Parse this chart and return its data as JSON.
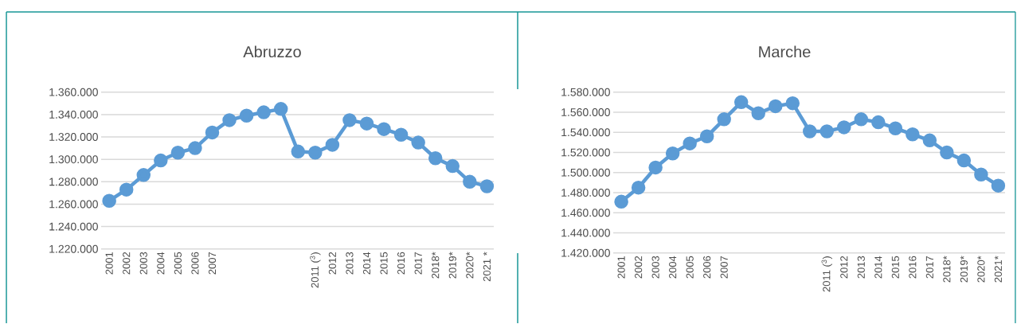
{
  "chart_data": [
    {
      "type": "line",
      "title": "Abruzzo",
      "categories": [
        "2001",
        "2002",
        "2003",
        "2004",
        "2005",
        "2006",
        "2007",
        null,
        null,
        null,
        null,
        null,
        "2011 ($^{3}$)",
        "2012",
        "2013",
        "2014",
        "2015",
        "2016",
        "2017",
        "2018*",
        "2019*",
        "2020*",
        "2021 *"
      ],
      "series": [
        {
          "color": "#5b9bd5",
          "values": [
            1263000,
            1273000,
            1286000,
            1299000,
            1306000,
            1310000,
            1324000,
            1335000,
            1339000,
            1342000,
            1345000,
            1307000,
            1306000,
            1313000,
            1335000,
            1332000,
            1327000,
            1322000,
            1315000,
            1301000,
            1294000,
            1280000,
            1276000
          ]
        }
      ],
      "ylim": [
        1220000,
        1360000
      ],
      "yticks": [
        {
          "value": 1220000,
          "label": "1.220.000"
        },
        {
          "value": 1240000,
          "label": "1.240.000"
        },
        {
          "value": 1260000,
          "label": "1.260.000"
        },
        {
          "value": 1280000,
          "label": "1.280.000"
        },
        {
          "value": 1300000,
          "label": "1.300.000"
        },
        {
          "value": 1320000,
          "label": "1.320.000"
        },
        {
          "value": 1340000,
          "label": "1.340.000"
        },
        {
          "value": 1360000,
          "label": "1.360.000"
        }
      ],
      "grid": "y",
      "marker": "circle",
      "line_style": "solid"
    },
    {
      "type": "line",
      "title": "Marche",
      "categories": [
        "2001",
        "2002",
        "2003",
        "2004",
        "2005",
        "2006",
        "2007",
        null,
        null,
        null,
        null,
        null,
        "2011 ($^{3}$)",
        "2012",
        "2013",
        "2014",
        "2015",
        "2016",
        "2017",
        "2018*",
        "2019*",
        "2020*",
        "2021*"
      ],
      "series": [
        {
          "color": "#5b9bd5",
          "values": [
            1471000,
            1485000,
            1505000,
            1519000,
            1529000,
            1536000,
            1553000,
            1570000,
            1559000,
            1566000,
            1569000,
            1541000,
            1541000,
            1545000,
            1553000,
            1550000,
            1544000,
            1538000,
            1532000,
            1520000,
            1512000,
            1498000,
            1487000
          ]
        }
      ],
      "ylim": [
        1420000,
        1580000
      ],
      "yticks": [
        {
          "value": 1420000,
          "label": "1.420.000"
        },
        {
          "value": 1440000,
          "label": "1.440.000"
        },
        {
          "value": 1460000,
          "label": "1.460.000"
        },
        {
          "value": 1480000,
          "label": "1.480.000"
        },
        {
          "value": 1500000,
          "label": "1.500.000"
        },
        {
          "value": 1520000,
          "label": "1.520.000"
        },
        {
          "value": 1540000,
          "label": "1.540.000"
        },
        {
          "value": 1560000,
          "label": "1.560.000"
        },
        {
          "value": 1580000,
          "label": "1.580.000"
        }
      ],
      "grid": "y",
      "marker": "circle",
      "line_style": "solid"
    }
  ]
}
